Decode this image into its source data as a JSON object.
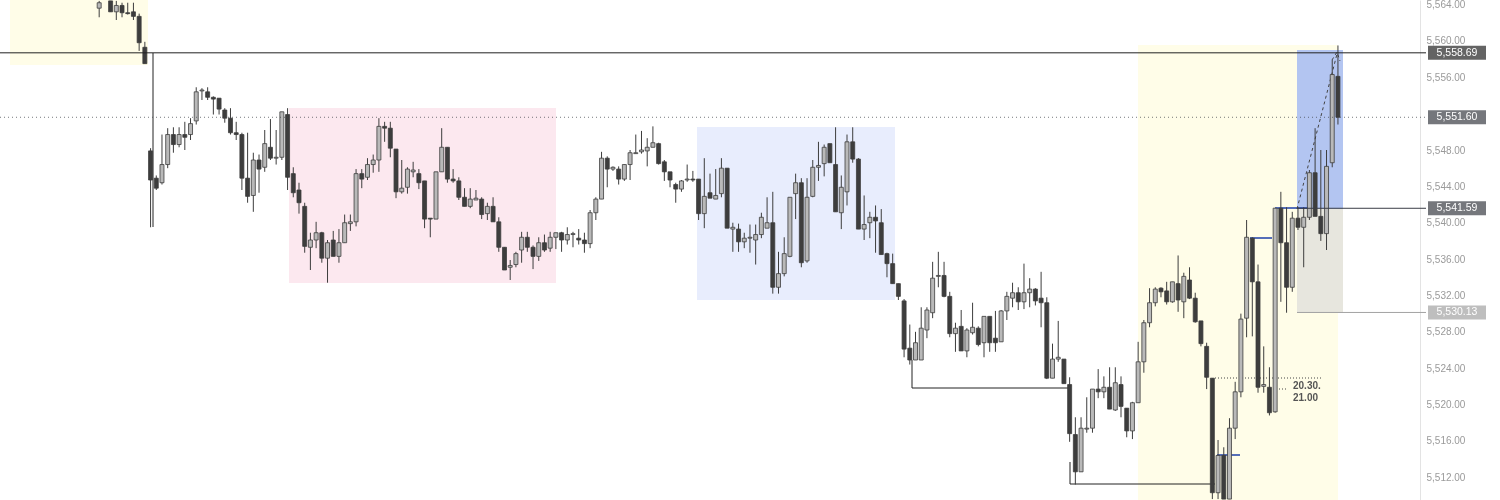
{
  "chart_data": {
    "type": "candlestick",
    "categories": [
      null,
      null,
      null,
      null,
      null,
      null,
      null,
      null,
      null,
      null,
      null,
      null,
      null,
      null,
      null,
      null,
      null,
      null,
      null,
      null,
      null,
      null,
      null,
      null,
      null,
      null,
      null,
      null,
      null,
      null,
      null,
      null,
      null,
      null,
      null,
      null,
      null,
      null,
      null,
      null,
      null,
      null,
      null,
      null,
      null,
      null,
      null,
      null,
      null,
      null,
      null,
      null,
      null,
      null,
      null,
      null,
      null,
      null,
      null,
      null,
      null,
      null,
      null,
      null,
      null,
      null,
      null,
      null,
      null,
      null,
      null,
      null,
      null,
      null,
      null,
      null,
      null,
      null,
      null,
      null,
      null,
      null,
      null,
      null,
      null,
      null,
      null,
      null,
      null,
      null,
      null,
      null,
      null,
      null,
      null,
      null,
      null,
      null,
      null,
      null,
      null,
      null,
      null,
      null,
      null,
      null,
      null,
      null,
      null,
      null,
      null,
      null,
      null,
      null,
      null,
      null,
      null,
      null,
      null,
      null,
      null,
      null,
      null,
      null,
      null,
      null,
      null,
      null,
      null,
      null,
      null,
      null,
      null,
      null,
      null,
      null,
      null,
      null,
      null,
      null,
      null,
      null,
      null,
      null,
      null,
      null,
      null,
      null,
      null,
      null,
      null,
      null,
      null,
      null,
      null,
      null,
      null,
      null,
      null,
      null,
      null,
      null,
      null,
      null,
      null,
      null,
      null,
      null,
      null,
      null,
      null,
      null,
      null,
      null,
      null,
      null,
      null,
      null,
      null,
      null,
      null,
      null,
      null,
      null,
      null,
      null,
      null,
      null,
      null,
      null,
      null,
      null,
      null,
      null,
      null,
      null,
      null,
      null,
      null,
      null,
      null,
      null,
      null,
      null,
      null,
      null,
      null,
      null,
      null,
      null,
      null,
      null,
      null,
      null,
      null,
      null,
      null,
      null,
      null,
      null,
      null,
      null,
      null,
      null,
      null,
      null,
      null,
      null,
      null,
      null,
      null,
      null,
      null,
      null,
      null,
      null,
      null,
      null,
      null,
      null,
      null,
      null,
      null,
      null,
      null,
      null,
      null,
      null,
      null
    ],
    "ohlc": [
      null,
      null,
      null,
      null,
      null,
      null,
      null,
      null,
      null,
      null,
      null,
      null,
      null,
      null,
      null,
      null,
      null,
      [
        5563.6,
        5564.4,
        5562.6,
        5564.2
      ],
      null,
      [
        5564.4,
        5564.4,
        5563.2,
        5563.2
      ],
      [
        5563.2,
        5564.4,
        5562.3,
        5563.9
      ],
      [
        5563.9,
        5564.2,
        5562.6,
        5563.1
      ],
      [
        5563.1,
        5564.2,
        5562.9,
        5563.0
      ],
      [
        5563.2,
        5564.2,
        5562.3,
        5562.7
      ],
      [
        5562.7,
        5563.0,
        5558.9,
        5559.8
      ],
      [
        5559.3,
        5559.9,
        5557.5,
        5557.5
      ],
      [
        5547.9,
        5548.2,
        5539.5,
        5544.7
      ],
      [
        5544.9,
        5545.2,
        5543.6,
        5543.8
      ],
      [
        5544.4,
        5549.7,
        5544.2,
        5546.4
      ],
      [
        5546.4,
        5550.4,
        5546.0,
        5549.7
      ],
      [
        5549.7,
        5550.5,
        5547.7,
        5548.6
      ],
      [
        5548.6,
        5550.5,
        5548.3,
        5549.7
      ],
      [
        5549.7,
        5551.1,
        5548.0,
        5549.4
      ],
      [
        5549.7,
        5551.5,
        5549.1,
        5550.9
      ],
      [
        5551.2,
        5554.9,
        5550.8,
        5554.4
      ],
      [
        5554.5,
        5554.8,
        5553.5,
        5554.6
      ],
      [
        5554.4,
        5554.9,
        5553.5,
        5553.8
      ],
      [
        5553.8,
        5553.9,
        5551.9,
        5553.6
      ],
      [
        5553.7,
        5553.7,
        5551.9,
        5552.5
      ],
      [
        5552.4,
        5552.6,
        5551.0,
        5551.5
      ],
      [
        5551.5,
        5552.6,
        5549.7,
        5549.9
      ],
      [
        5549.9,
        5551.1,
        5549.1,
        5549.7
      ],
      [
        5549.7,
        5549.9,
        5543.6,
        5544.9
      ],
      [
        5544.9,
        5549.9,
        5542.2,
        5542.9
      ],
      [
        5543.0,
        5547.7,
        5541.2,
        5546.9
      ],
      [
        5546.9,
        5547.5,
        5543.3,
        5545.9
      ],
      [
        5546.1,
        5550.2,
        5545.6,
        5548.7
      ],
      [
        5548.3,
        5551.4,
        5546.9,
        5547.1
      ],
      [
        5547.1,
        5550.2,
        5546.4,
        5547.2
      ],
      [
        5547.2,
        5552.2,
        5546.9,
        5552.2
      ],
      [
        5551.9,
        5552.6,
        5543.6,
        5545.0
      ],
      [
        5545.4,
        5546.1,
        5542.8,
        5543.3
      ],
      [
        5543.6,
        5544.4,
        5541.0,
        5542.2
      ],
      [
        5541.8,
        5542.2,
        5536.7,
        5537.4
      ],
      [
        5537.3,
        5538.9,
        5534.8,
        5538.1
      ],
      [
        5538.1,
        5540.1,
        5537.2,
        5538.9
      ],
      [
        5538.9,
        5539.0,
        5535.6,
        5536.1
      ],
      [
        5536.1,
        5538.1,
        5533.4,
        5537.8
      ],
      [
        5538.1,
        5539.1,
        5536.3,
        5536.3
      ],
      [
        5536.3,
        5539.3,
        5535.6,
        5537.8
      ],
      [
        5537.8,
        5540.9,
        5537.8,
        5540.0
      ],
      [
        5539.9,
        5540.9,
        5539.1,
        5540.1
      ],
      [
        5540.1,
        5545.9,
        5539.6,
        5545.4
      ],
      [
        5545.4,
        5545.9,
        5543.8,
        5544.8
      ],
      [
        5545.0,
        5547.1,
        5544.7,
        5546.4
      ],
      [
        5546.4,
        5547.5,
        5545.5,
        5546.9
      ],
      [
        5546.9,
        5551.5,
        5545.6,
        5550.6
      ],
      [
        5550.6,
        5551.1,
        5548.9,
        5550.4
      ],
      [
        5550.4,
        5551.1,
        5547.2,
        5548.2
      ],
      [
        5548.1,
        5548.1,
        5542.7,
        5543.4
      ],
      [
        5543.4,
        5546.9,
        5543.2,
        5543.8
      ],
      [
        5543.9,
        5546.1,
        5543.2,
        5545.9
      ],
      [
        5545.6,
        5546.7,
        5545.0,
        5545.8
      ],
      [
        5545.4,
        5545.9,
        5543.7,
        5544.4
      ],
      [
        5544.6,
        5544.6,
        5539.4,
        5540.4
      ],
      [
        5540.5,
        5540.5,
        5538.4,
        5540.4
      ],
      [
        5540.4,
        5545.6,
        5540.4,
        5545.6
      ],
      [
        5545.6,
        5550.4,
        5545.6,
        5548.3
      ],
      [
        5548.3,
        5548.3,
        5544.4,
        5544.8
      ],
      [
        5544.8,
        5545.9,
        5544.4,
        5544.6
      ],
      [
        5544.6,
        5545.0,
        5542.5,
        5542.8
      ],
      [
        5542.8,
        5543.8,
        5541.8,
        5541.8
      ],
      [
        5541.8,
        5543.8,
        5541.6,
        5542.6
      ],
      [
        5542.5,
        5543.6,
        5542.5,
        5542.7
      ],
      [
        5542.6,
        5542.8,
        5540.4,
        5540.9
      ],
      [
        5541.0,
        5542.2,
        5540.3,
        5541.8
      ],
      [
        5541.8,
        5542.8,
        5540.1,
        5540.1
      ],
      [
        5540.1,
        5540.6,
        5536.8,
        5537.3
      ],
      [
        5537.3,
        5537.3,
        5534.8,
        5534.8
      ],
      [
        5535.1,
        5535.9,
        5533.7,
        5535.3
      ],
      [
        5535.4,
        5536.8,
        5535.1,
        5536.6
      ],
      [
        5537.0,
        5539.0,
        5535.6,
        5538.4
      ],
      [
        5538.4,
        5539.0,
        5536.8,
        5537.3
      ],
      [
        5537.3,
        5537.5,
        5534.9,
        5536.3
      ],
      [
        5536.3,
        5538.4,
        5535.8,
        5537.8
      ],
      [
        5537.8,
        5538.7,
        5536.8,
        5537.0
      ],
      [
        5537.2,
        5539.0,
        5536.8,
        5538.4
      ],
      [
        5538.4,
        5538.9,
        5537.1,
        5538.9
      ],
      [
        5538.9,
        5539.0,
        5536.8,
        5538.1
      ],
      [
        5538.1,
        5539.5,
        5537.6,
        5538.7
      ],
      [
        5538.7,
        5539.0,
        5537.3,
        5538.8
      ],
      [
        5538.3,
        5539.3,
        5537.6,
        5538.1
      ],
      [
        5538.1,
        5538.9,
        5536.7,
        5537.7
      ],
      [
        5537.7,
        5541.4,
        5537.2,
        5541.1
      ],
      [
        5541.1,
        5542.8,
        5540.3,
        5542.6
      ],
      [
        5542.6,
        5547.8,
        5542.6,
        5547.1
      ],
      [
        5547.1,
        5547.3,
        5543.9,
        5545.9
      ],
      [
        5545.9,
        5546.2,
        5545.7,
        5546.1
      ],
      [
        5545.9,
        5546.2,
        5544.2,
        5544.8
      ],
      [
        5544.8,
        5546.4,
        5544.6,
        5546.4
      ],
      [
        5546.4,
        5548.0,
        5544.7,
        5547.7
      ],
      [
        5547.6,
        5549.7,
        5547.6,
        5547.7
      ],
      [
        5547.8,
        5550.1,
        5547.6,
        5548.0
      ],
      [
        5547.9,
        5549.3,
        5546.2,
        5548.3
      ],
      [
        5548.3,
        5550.6,
        5548.3,
        5548.8
      ],
      [
        5548.7,
        5548.8,
        5546.4,
        5546.5
      ],
      [
        5546.7,
        5546.9,
        5544.6,
        5545.6
      ],
      [
        5545.6,
        5545.6,
        5543.9,
        5544.7
      ],
      [
        5544.2,
        5544.4,
        5542.2,
        5543.7
      ],
      [
        5543.7,
        5544.7,
        5543.4,
        5544.6
      ],
      [
        5544.7,
        5546.4,
        5544.5,
        5544.8
      ],
      [
        5544.8,
        5545.7,
        5544.5,
        5544.7
      ],
      [
        5544.8,
        5544.8,
        5540.3,
        5541.0
      ],
      [
        5541.0,
        5547.1,
        5539.4,
        5542.9
      ],
      [
        5543.3,
        5545.4,
        5542.7,
        5542.7
      ],
      [
        5542.6,
        5545.9,
        5542.6,
        5543.0
      ],
      [
        5543.2,
        5547.1,
        5542.8,
        5546.0
      ],
      [
        5546.0,
        5546.0,
        5539.4,
        5539.4
      ],
      [
        5539.3,
        5540.0,
        5536.8,
        5539.5
      ],
      [
        5539.3,
        5539.9,
        5536.8,
        5537.9
      ],
      [
        5537.9,
        5538.9,
        5537.2,
        5538.3
      ],
      [
        5538.3,
        5539.8,
        5536.7,
        5538.4
      ],
      [
        5538.1,
        5539.8,
        5535.4,
        5538.7
      ],
      [
        5538.7,
        5541.1,
        5538.3,
        5540.6
      ],
      [
        5539.4,
        5542.8,
        5539.4,
        5540.0
      ],
      [
        5540.0,
        5543.4,
        5532.2,
        5532.9
      ],
      [
        5532.9,
        5536.8,
        5532.2,
        5534.4
      ],
      [
        5534.4,
        5538.4,
        5534.1,
        5536.6
      ],
      [
        5536.3,
        5542.8,
        5536.2,
        5542.8
      ],
      [
        5543.2,
        5545.4,
        5540.4,
        5544.4
      ],
      [
        5544.4,
        5544.9,
        5535.1,
        5535.6
      ],
      [
        5535.8,
        5544.9,
        5535.6,
        5542.8
      ],
      [
        5542.9,
        5546.9,
        5542.8,
        5546.1
      ],
      [
        5546.1,
        5548.9,
        5544.6,
        5546.3
      ],
      [
        5546.5,
        5548.6,
        5545.1,
        5548.3
      ],
      [
        5548.7,
        5548.7,
        5546.6,
        5546.6
      ],
      [
        5546.4,
        5550.5,
        5541.2,
        5541.2
      ],
      [
        5541.1,
        5545.2,
        5539.3,
        5543.9
      ],
      [
        5543.4,
        5549.7,
        5541.9,
        5548.9
      ],
      [
        5548.9,
        5550.5,
        5546.6,
        5547.0
      ],
      [
        5547.0,
        5547.1,
        5539.3,
        5539.3
      ],
      [
        5539.3,
        5543.0,
        5538.1,
        5539.8
      ],
      [
        5540.0,
        5541.2,
        5538.3,
        5540.6
      ],
      [
        5540.6,
        5541.9,
        5536.7,
        5540.2
      ],
      [
        5540.0,
        5541.5,
        5536.5,
        5536.5
      ],
      [
        5536.6,
        5536.7,
        5534.0,
        5535.5
      ],
      [
        5535.5,
        5536.6,
        5533.3,
        5533.3
      ],
      [
        5533.3,
        5533.3,
        5531.5,
        5531.9
      ],
      [
        5531.4,
        5531.6,
        5525.2,
        5526.1
      ],
      [
        5526.2,
        5528.8,
        5524.4,
        5524.9
      ],
      [
        5524.9,
        5528.0,
        5524.9,
        5526.8
      ],
      [
        5524.9,
        5530.7,
        5524.9,
        5528.4
      ],
      [
        5528.2,
        5530.7,
        5527.3,
        5530.4
      ],
      [
        5530.1,
        5535.7,
        5529.5,
        5533.9
      ],
      [
        5534.1,
        5536.8,
        5532.9,
        5534.2
      ],
      [
        5534.2,
        5535.7,
        5531.8,
        5531.9
      ],
      [
        5531.9,
        5532.4,
        5527.4,
        5527.8
      ],
      [
        5527.8,
        5529.0,
        5525.8,
        5528.4
      ],
      [
        5528.6,
        5530.4,
        5525.9,
        5525.9
      ],
      [
        5525.9,
        5528.4,
        5525.2,
        5528.2
      ],
      [
        5527.9,
        5531.2,
        5527.7,
        5528.5
      ],
      [
        5528.4,
        5528.6,
        5526.4,
        5526.6
      ],
      [
        5526.8,
        5529.7,
        5525.2,
        5529.7
      ],
      [
        5529.7,
        5529.7,
        5525.8,
        5526.8
      ],
      [
        5527.3,
        5530.3,
        5525.8,
        5526.8
      ],
      [
        5526.9,
        5530.4,
        5526.9,
        5530.3
      ],
      [
        5530.3,
        5532.4,
        5529.3,
        5531.9
      ],
      [
        5531.7,
        5533.4,
        5530.7,
        5532.3
      ],
      [
        5532.3,
        5532.9,
        5530.4,
        5531.3
      ],
      [
        5531.3,
        5535.5,
        5530.5,
        5532.3
      ],
      [
        5532.3,
        5533.9,
        5530.7,
        5532.7
      ],
      [
        5532.7,
        5532.8,
        5530.9,
        5531.4
      ],
      [
        5531.7,
        5534.6,
        5528.5,
        5531.2
      ],
      [
        5531.2,
        5531.8,
        5522.8,
        5522.9
      ],
      [
        5522.9,
        5526.7,
        5522.9,
        5525.0
      ],
      [
        5525.0,
        5529.2,
        5524.7,
        5525.2
      ],
      [
        5525.0,
        5525.0,
        5522.3,
        5522.3
      ],
      [
        5522.2,
        5523.0,
        5515.9,
        5516.8
      ],
      [
        5516.7,
        5518.6,
        5511.2,
        5512.6
      ],
      [
        5512.6,
        5518.6,
        5512.6,
        5517.4
      ],
      [
        5517.3,
        5520.8,
        5516.9,
        5517.4
      ],
      [
        5517.4,
        5521.7,
        5516.9,
        5521.7
      ],
      [
        5521.7,
        5523.9,
        5520.7,
        5521.4
      ],
      [
        5521.4,
        5523.1,
        5520.7,
        5521.9
      ],
      [
        5521.9,
        5524.1,
        5519.5,
        5519.5
      ],
      [
        5519.4,
        5524.1,
        5519.3,
        5522.4
      ],
      [
        5522.2,
        5523.1,
        5518.6,
        5519.8
      ],
      [
        5519.6,
        5519.6,
        5516.4,
        5517.1
      ],
      [
        5517.1,
        5520.3,
        5516.2,
        5520.2
      ],
      [
        5520.2,
        5526.9,
        5520.2,
        5524.7
      ],
      [
        5524.7,
        5529.3,
        5523.5,
        5529.0
      ],
      [
        5529.0,
        5532.8,
        5528.5,
        5531.2
      ],
      [
        5531.2,
        5532.9,
        5530.8,
        5532.7
      ],
      [
        5532.8,
        5532.9,
        5531.8,
        5532.4
      ],
      [
        5532.5,
        5533.5,
        5531.0,
        5531.3
      ],
      [
        5531.3,
        5533.5,
        5531.2,
        5533.5
      ],
      [
        5533.3,
        5536.4,
        5530.2,
        5531.5
      ],
      [
        5531.3,
        5534.5,
        5529.5,
        5534.1
      ],
      [
        5533.7,
        5535.1,
        5531.6,
        5531.7
      ],
      [
        5531.7,
        5532.3,
        5529.0,
        5529.1
      ],
      [
        5529.2,
        5529.2,
        5526.4,
        5526.7
      ],
      [
        5526.4,
        5526.8,
        5521.7,
        5523.0
      ],
      [
        5522.9,
        5522.9,
        5509.6,
        5510.3
      ],
      [
        5510.3,
        5516.1,
        5509.6,
        5514.4
      ],
      [
        5514.4,
        5515.3,
        5509.6,
        5509.6
      ],
      [
        5509.6,
        5518.5,
        5509.6,
        5517.4
      ],
      [
        5517.4,
        5522.5,
        5516.2,
        5521.4
      ],
      [
        5521.4,
        5530.0,
        5520.8,
        5529.4
      ],
      [
        5529.5,
        5540.3,
        5527.4,
        5538.4
      ],
      [
        5538.3,
        5538.4,
        5527.5,
        5533.5
      ],
      [
        5533.5,
        5535.4,
        5521.3,
        5521.9
      ],
      [
        5522.0,
        5526.4,
        5521.3,
        5522.2
      ],
      [
        5521.9,
        5524.1,
        5518.8,
        5519.1
      ],
      [
        5519.2,
        5541.6,
        5519.1,
        5541.6
      ],
      [
        5541.6,
        5543.4,
        5531.3,
        5537.8
      ],
      [
        5537.8,
        5541.7,
        5530.1,
        5532.9
      ],
      [
        5532.9,
        5541.2,
        5532.4,
        5540.5
      ],
      [
        5540.5,
        5541.7,
        5539.2,
        5539.5
      ],
      [
        5539.5,
        5541.7,
        5535.1,
        5540.6
      ],
      [
        5540.6,
        5545.8,
        5540.3,
        5545.5
      ],
      [
        5545.5,
        5550.4,
        5540.7,
        5540.7
      ],
      [
        5540.7,
        5548.0,
        5538.0,
        5538.8
      ],
      [
        5538.8,
        5548.0,
        5537.0,
        5546.2
      ],
      [
        5546.6,
        5557.9,
        5546.1,
        5556.3
      ],
      [
        5556.1,
        5559.5,
        5550.8,
        5551.6
      ],
      null,
      null,
      null,
      null,
      null,
      null,
      null,
      null,
      null,
      null,
      null,
      null,
      null,
      null
    ],
    "ylim": [
      5509.5,
      5564.5
    ],
    "yticks": [
      {
        "value": 5512,
        "label": "5,512.00"
      },
      {
        "value": 5516,
        "label": "5,516.00"
      },
      {
        "value": 5520,
        "label": "5,520.00"
      },
      {
        "value": 5524,
        "label": "5,524.00"
      },
      {
        "value": 5528,
        "label": "5,528.00"
      },
      {
        "value": 5532,
        "label": "5,532.00"
      },
      {
        "value": 5536,
        "label": "5,536.00"
      },
      {
        "value": 5540,
        "label": "5,540.00"
      },
      {
        "value": 5544,
        "label": "5,544.00"
      },
      {
        "value": 5548,
        "label": "5,548.00"
      },
      {
        "value": 5556,
        "label": "5,556.00"
      },
      {
        "value": 5560,
        "label": "5,560.00"
      },
      {
        "value": 5564,
        "label": "5,564.00"
      }
    ],
    "ref_lines": [
      {
        "axis": "y",
        "value": 5558.69,
        "label": "5,558.69",
        "color": "#222222",
        "line_style": "solid"
      },
      {
        "axis": "y",
        "value": 5551.6,
        "label": "5,551.60",
        "color": "#3a3d45",
        "line_style": "dotted"
      },
      {
        "axis": "y",
        "value": 5541.59,
        "label": "5,541.59",
        "color": "#3a3d45"
      },
      {
        "axis": "y",
        "value": 5530.13,
        "label": "5,530.13",
        "color": "#a3a3a3"
      }
    ],
    "annotations": [
      "20.30.",
      "21.00"
    ]
  }
}
